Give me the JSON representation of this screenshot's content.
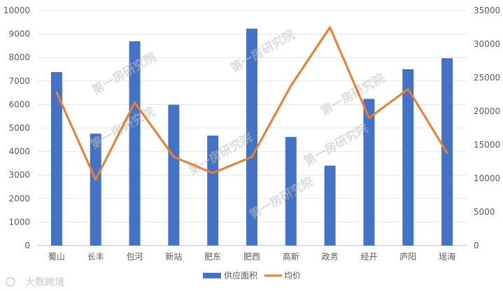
{
  "chart_data": {
    "type": "bar-line-combo",
    "categories": [
      "蜀山",
      "长丰",
      "包河",
      "新站",
      "肥东",
      "肥西",
      "高新",
      "政务",
      "经开",
      "庐阳",
      "瑶海"
    ],
    "series": [
      {
        "name": "供应面积",
        "type": "bar",
        "axis": "left",
        "color": "#4472c4",
        "values": [
          7380,
          4760,
          8690,
          5990,
          4680,
          9230,
          4620,
          3400,
          6240,
          7500,
          7970
        ]
      },
      {
        "name": "均价",
        "type": "line",
        "axis": "right",
        "color": "#ed7d31",
        "values": [
          22800,
          9800,
          21300,
          13200,
          10800,
          13200,
          23800,
          32500,
          19000,
          23300,
          13800
        ]
      }
    ],
    "y_left": {
      "min": 0,
      "max": 10000,
      "step": 1000,
      "ticks": [
        "0",
        "1000",
        "2000",
        "3000",
        "4000",
        "5000",
        "6000",
        "7000",
        "8000",
        "9000",
        "10000"
      ]
    },
    "y_right": {
      "min": 0,
      "max": 35000,
      "step": 5000,
      "ticks": [
        "0",
        "5000",
        "10000",
        "15000",
        "20000",
        "25000",
        "30000",
        "35000"
      ]
    },
    "grid": true,
    "legend_position": "bottom"
  },
  "watermark": {
    "text": "第一房研究院",
    "logo": "大数跨境"
  }
}
